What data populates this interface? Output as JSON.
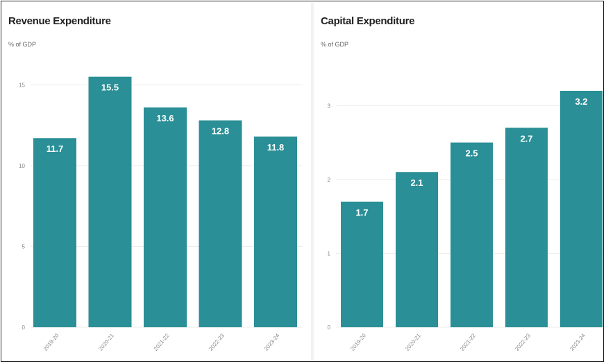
{
  "chart_data": [
    {
      "type": "bar",
      "title": "Revenue Expenditure",
      "subtitle": "% of GDP",
      "categories": [
        "2019-20",
        "2020-21",
        "2021-22",
        "2022-23",
        "2023-24"
      ],
      "values": [
        11.7,
        15.5,
        13.6,
        12.8,
        11.8
      ],
      "data_labels": [
        "11.7",
        "15.5",
        "13.6",
        "12.8",
        "11.8"
      ],
      "yticks": [
        0,
        5,
        10,
        15
      ],
      "ylim": [
        0,
        16
      ],
      "grid": true,
      "color": "#2a8f96"
    },
    {
      "type": "bar",
      "title": "Capital Expenditure",
      "subtitle": "% of GDP",
      "categories": [
        "2019-20",
        "2020-21",
        "2021-22",
        "2022-23",
        "2023-24"
      ],
      "values": [
        1.7,
        2.1,
        2.5,
        2.7,
        3.2
      ],
      "data_labels": [
        "1.7",
        "2.1",
        "2.5",
        "2.7",
        "3.2"
      ],
      "yticks": [
        0,
        1,
        2,
        3
      ],
      "ylim": [
        0,
        3.5
      ],
      "grid": true,
      "color": "#2a8f96"
    }
  ]
}
